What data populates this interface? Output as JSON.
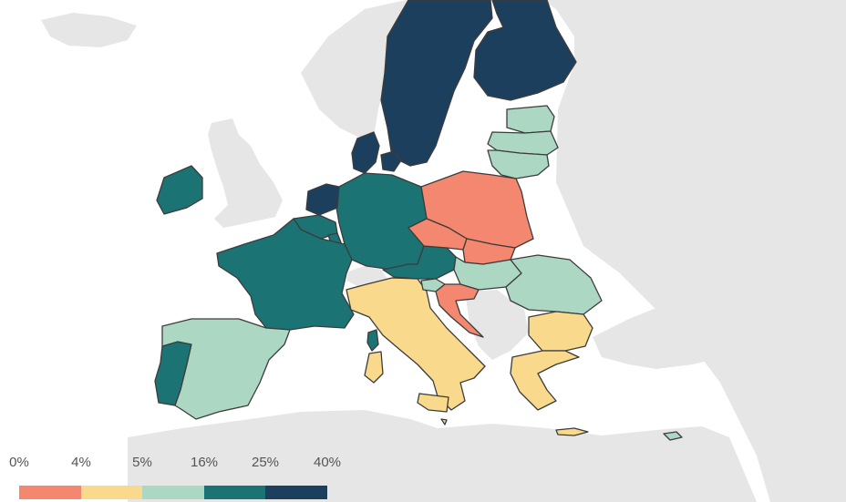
{
  "colors": {
    "background_land": "#e6e6e6",
    "sea": "#ffffff",
    "border": "#3c3c3c",
    "bins": [
      "#f4876f",
      "#f9d98c",
      "#acd8c3",
      "#1b7373",
      "#1d3f5e"
    ]
  },
  "legend": {
    "ticks": [
      "0%",
      "4%",
      "5%",
      "16%",
      "25%",
      "40%"
    ]
  },
  "regions": {
    "finland": 5,
    "sweden": 5,
    "norway": 0,
    "denmark": 5,
    "estonia": 3,
    "latvia": 3,
    "lithuania": 3,
    "poland": 1,
    "germany": 4,
    "netherlands": 5,
    "belgium": 4,
    "luxembourg": 4,
    "france": 4,
    "ireland": 4,
    "united-kingdom": 0,
    "portugal": 4,
    "spain": 3,
    "italy": 2,
    "switzerland": 0,
    "austria": 4,
    "czechia": 1,
    "slovakia": 1,
    "hungary": 3,
    "slovenia": 3,
    "croatia": 1,
    "romania": 3,
    "bulgaria": 2,
    "greece": 2,
    "cyprus": 3,
    "malta": 2,
    "corsica": 4,
    "sardinia": 2
  }
}
